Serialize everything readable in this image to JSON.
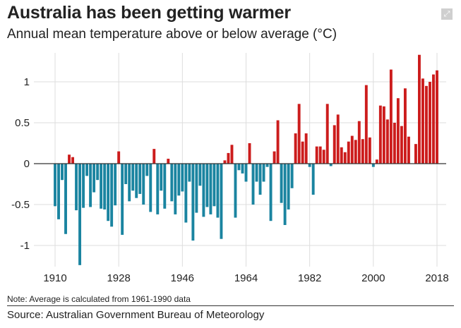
{
  "header": {
    "title": "Australia has been getting warmer",
    "subtitle": "Annual mean temperature above or below average (°C)",
    "expand_icon": "expand-icon"
  },
  "footer": {
    "note": "Note: Average is calculated from 1961-1990 data",
    "source": "Source: Australian Government Bureau of Meteorology"
  },
  "colors": {
    "positive": "#cc1c1c",
    "negative": "#1a84a0",
    "grid": "#dddddd",
    "zero_line": "#333333"
  },
  "chart_data": {
    "type": "bar",
    "title": "Australia has been getting warmer",
    "subtitle": "Annual mean temperature above or below average (°C)",
    "xlabel": "",
    "ylabel": "",
    "ylim": [
      -1.3,
      1.35
    ],
    "xlim": [
      1910,
      2018
    ],
    "yticks": [
      {
        "value": 1,
        "label": "1"
      },
      {
        "value": 0.5,
        "label": "0.5"
      },
      {
        "value": 0,
        "label": "0"
      },
      {
        "value": -0.5,
        "label": "-0.5"
      },
      {
        "value": -1,
        "label": "-1"
      }
    ],
    "xticks": [
      {
        "value": 1910,
        "label": "1910"
      },
      {
        "value": 1928,
        "label": "1928"
      },
      {
        "value": 1946,
        "label": "1946"
      },
      {
        "value": 1964,
        "label": "1964"
      },
      {
        "value": 1982,
        "label": "1982"
      },
      {
        "value": 2000,
        "label": "2000"
      },
      {
        "value": 2018,
        "label": "2018"
      }
    ],
    "grid": true,
    "legend": "none",
    "series": [
      {
        "x": [
          1910,
          1911,
          1912,
          1913,
          1914,
          1915,
          1916,
          1917,
          1918,
          1919,
          1920,
          1921,
          1922,
          1923,
          1924,
          1925,
          1926,
          1927,
          1928,
          1929,
          1930,
          1931,
          1932,
          1933,
          1934,
          1935,
          1936,
          1937,
          1938,
          1939,
          1940,
          1941,
          1942,
          1943,
          1944,
          1945,
          1946,
          1947,
          1948,
          1949,
          1950,
          1951,
          1952,
          1953,
          1954,
          1955,
          1956,
          1957,
          1958,
          1959,
          1960,
          1961,
          1962,
          1963,
          1964,
          1965,
          1966,
          1967,
          1968,
          1969,
          1970,
          1971,
          1972,
          1973,
          1974,
          1975,
          1976,
          1977,
          1978,
          1979,
          1980,
          1981,
          1982,
          1983,
          1984,
          1985,
          1986,
          1987,
          1988,
          1989,
          1990,
          1991,
          1992,
          1993,
          1994,
          1995,
          1996,
          1997,
          1998,
          1999,
          2000,
          2001,
          2002,
          2003,
          2004,
          2005,
          2006,
          2007,
          2008,
          2009,
          2010,
          2011,
          2012,
          2013,
          2014,
          2015,
          2016,
          2017,
          2018
        ],
        "values": [
          -0.52,
          -0.68,
          -0.2,
          -0.86,
          0.11,
          0.08,
          -0.57,
          -1.24,
          -0.54,
          -0.15,
          -0.53,
          -0.35,
          -0.2,
          -0.55,
          -0.56,
          -0.7,
          -0.77,
          -0.51,
          0.15,
          -0.87,
          -0.25,
          -0.46,
          -0.33,
          -0.42,
          -0.37,
          -0.5,
          -0.15,
          -0.59,
          0.18,
          -0.62,
          -0.33,
          -0.55,
          0.06,
          -0.46,
          -0.62,
          -0.39,
          -0.34,
          -0.72,
          -0.22,
          -0.94,
          -0.6,
          -0.27,
          -0.65,
          -0.53,
          -0.62,
          -0.52,
          -0.66,
          -0.92,
          0.04,
          0.13,
          0.23,
          -0.66,
          -0.08,
          -0.12,
          -0.22,
          0.25,
          -0.5,
          -0.22,
          -0.38,
          -0.22,
          -0.04,
          -0.7,
          0.15,
          0.53,
          -0.48,
          -0.75,
          -0.56,
          -0.3,
          0.37,
          0.73,
          0.27,
          0.37,
          -0.04,
          -0.38,
          0.21,
          0.21,
          0.17,
          0.73,
          -0.03,
          0.47,
          0.6,
          0.2,
          0.14,
          0.27,
          0.34,
          0.29,
          0.52,
          0.3,
          0.96,
          0.32,
          -0.04,
          0.05,
          0.71,
          0.7,
          0.54,
          1.15,
          0.5,
          0.8,
          0.46,
          0.92,
          0.33,
          0.0,
          0.24,
          1.33,
          1.04,
          0.95,
          1.0,
          1.09,
          1.14
        ]
      }
    ]
  }
}
